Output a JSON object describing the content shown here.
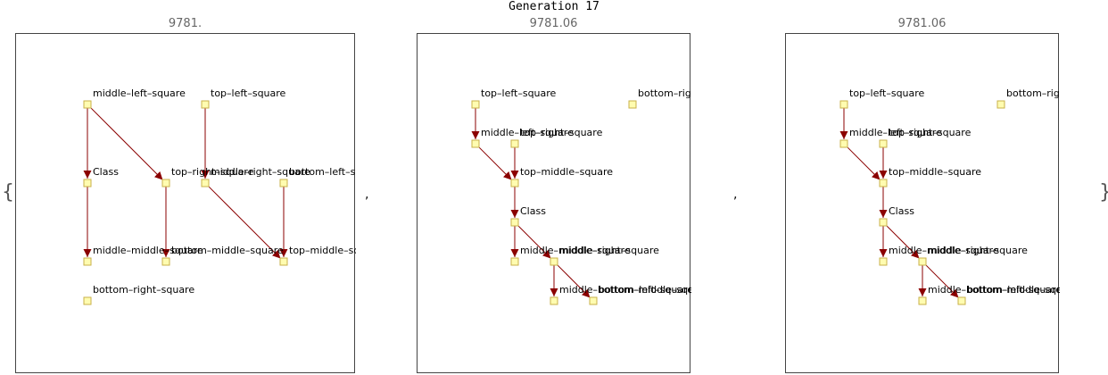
{
  "title": "Generation 17",
  "separators": {
    "open": "{",
    "comma": ",",
    "close": "}"
  },
  "panels": [
    {
      "label": "9781.",
      "nodes": [
        {
          "id": "a1",
          "label": "middle–left–square"
        },
        {
          "id": "a2",
          "label": "top–left–square"
        },
        {
          "id": "a3",
          "label": "Class"
        },
        {
          "id": "a4",
          "label": "top–right–square"
        },
        {
          "id": "a5",
          "label": "middle–right–square"
        },
        {
          "id": "a6",
          "label": "bottom–left–square"
        },
        {
          "id": "a7",
          "label": "middle–middle–square"
        },
        {
          "id": "a8",
          "label": "bottom–middle–square"
        },
        {
          "id": "a9",
          "label": "top–middle–square"
        },
        {
          "id": "a10",
          "label": "bottom–right–square"
        }
      ],
      "edges": [
        [
          "a1",
          "a3"
        ],
        [
          "a1",
          "a4"
        ],
        [
          "a2",
          "a5"
        ],
        [
          "a3",
          "a7"
        ],
        [
          "a4",
          "a8"
        ],
        [
          "a5",
          "a9"
        ],
        [
          "a6",
          "a9"
        ]
      ]
    },
    {
      "label": "9781.06",
      "nodes": [
        {
          "id": "b1",
          "label": "top–left–square"
        },
        {
          "id": "b2",
          "label": "bottom–right–square"
        },
        {
          "id": "b3",
          "label": "middle–left–square"
        },
        {
          "id": "b4",
          "label": "top–right–square"
        },
        {
          "id": "b5",
          "label": "top–middle–square"
        },
        {
          "id": "b6",
          "label": "Class"
        },
        {
          "id": "b7",
          "label": "middle–middle–square"
        },
        {
          "id": "b8",
          "label": "middle–right–square"
        },
        {
          "id": "b9",
          "label": "middle–bottom–middle–square"
        },
        {
          "id": "b10",
          "label": "bottom–left–square"
        }
      ],
      "edges": [
        [
          "b1",
          "b3"
        ],
        [
          "b3",
          "b5"
        ],
        [
          "b4",
          "b5"
        ],
        [
          "b5",
          "b6"
        ],
        [
          "b6",
          "b7"
        ],
        [
          "b6",
          "b8"
        ],
        [
          "b8",
          "b9"
        ],
        [
          "b8",
          "b10"
        ]
      ]
    },
    {
      "label": "9781.06",
      "nodes": [
        {
          "id": "c1",
          "label": "top–left–square"
        },
        {
          "id": "c2",
          "label": "bottom–right–square"
        },
        {
          "id": "c3",
          "label": "middle–left–square"
        },
        {
          "id": "c4",
          "label": "top–right–square"
        },
        {
          "id": "c5",
          "label": "top–middle–square"
        },
        {
          "id": "c6",
          "label": "Class"
        },
        {
          "id": "c7",
          "label": "middle–middle–square"
        },
        {
          "id": "c8",
          "label": "middle–right–square"
        },
        {
          "id": "c9",
          "label": "middle–bottom–middle–square"
        },
        {
          "id": "c10",
          "label": "bottom–left–square"
        }
      ],
      "edges": [
        [
          "c1",
          "c3"
        ],
        [
          "c3",
          "c5"
        ],
        [
          "c4",
          "c5"
        ],
        [
          "c5",
          "c6"
        ],
        [
          "c6",
          "c7"
        ],
        [
          "c6",
          "c8"
        ],
        [
          "c8",
          "c9"
        ],
        [
          "c8",
          "c10"
        ]
      ]
    }
  ]
}
